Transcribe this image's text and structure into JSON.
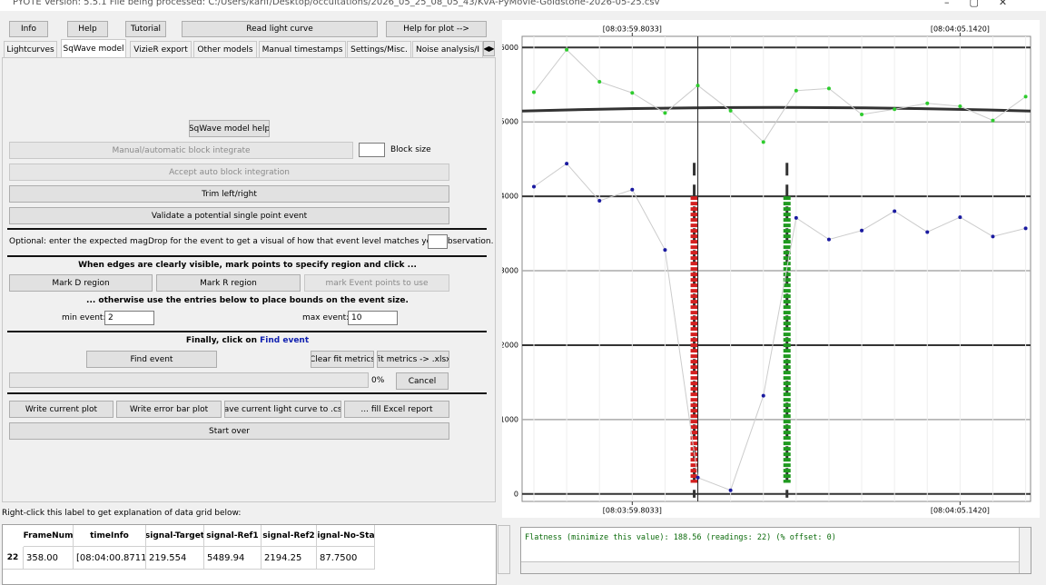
{
  "window": {
    "title": "PYOTE Version: 5.5.1  File being processed: C:/Users/karlf/Desktop/occultations/2026_05_25_08_05_43/KvA-PyMovie-Goldstone-2026-05-25.csv"
  },
  "top_buttons": [
    "Info",
    "Help",
    "Tutorial",
    "Read light curve",
    "Help for plot -->"
  ],
  "tabs": [
    "Lightcurves",
    "SqWave model",
    "VizieR export",
    "Other models",
    "Manual timestamps",
    "Settings/Misc.",
    "Noise analysis/I"
  ],
  "panel": {
    "help_button": "SqWave model help",
    "block_integrate": "Manual/automatic block integrate",
    "block_size": "Block size",
    "accept_block": "Accept auto block integration",
    "trim": "Trim left/right",
    "validate": "Validate a potential single point event",
    "magdrop_prompt": "Optional: enter the expected magDrop for the event to get a visual of how that event level matches your observation.",
    "edges_heading": "When edges are clearly visible, mark points to specify region and click ...",
    "mark_d": "Mark D region",
    "mark_r": "Mark R region",
    "mark_event": "mark Event points to use",
    "otherwise_heading": "... otherwise use the entries below to place bounds on the event size.",
    "min_event_label": "min event:",
    "min_event_value": "2",
    "max_event_label": "max event:",
    "max_event_value": "10",
    "finally_text": "Finally, click on ",
    "finally_link": "Find event",
    "find_event": "Find event",
    "clear_fit": "Clear fit metrics",
    "fit_xlsx": "fit metrics -> .xlsx",
    "progress": "0%",
    "cancel": "Cancel",
    "write_plot": "Write current plot",
    "write_error": "Write error bar plot",
    "save_csv": "Save current light curve to .csv",
    "fill_excel": "... fill Excel report",
    "start_over": "Start over"
  },
  "grid_label": "Right-click this label to get explanation of data grid below:",
  "table": {
    "columns": [
      "FrameNum",
      "timeInfo",
      "signal-Target",
      "signal-Ref1",
      "signal-Ref2",
      "signal-No-Star"
    ],
    "rows": [
      {
        "header": "22",
        "cells": [
          "358.00",
          "[08:04:00.8711]",
          "219.554",
          "5489.94",
          "2194.25",
          "87.7500"
        ]
      }
    ]
  },
  "output": "Flatness (minimize this value): 188.56 (readings: 22) (% offset: 0)",
  "chart_data": {
    "type": "scatter",
    "x": [
      0,
      1,
      2,
      3,
      4,
      5,
      6,
      7,
      8,
      9,
      10,
      11,
      12,
      13,
      14,
      15
    ],
    "xlim": [
      -0.36,
      15.15
    ],
    "xticks": [
      {
        "value": 3,
        "label": "[08:03:59.8033]"
      },
      {
        "value": 13,
        "label": "[08:04:05.1420]"
      }
    ],
    "ylim": [
      -100,
      6150
    ],
    "yticks": [
      0,
      1000,
      2000,
      3000,
      4000,
      5000,
      6000
    ],
    "series": [
      {
        "color": "#2ecc2e",
        "values": [
          5400,
          5970,
          5540,
          5390,
          5120,
          5490,
          5150,
          4730,
          5420,
          5450,
          5100,
          5170,
          5250,
          5210,
          5020,
          5340
        ]
      },
      {
        "color": "#1a1aa0",
        "values": [
          4130,
          4440,
          3940,
          4090,
          3280,
          220,
          50,
          1320,
          3710,
          3420,
          3540,
          3800,
          3520,
          3720,
          3460,
          3570
        ]
      }
    ],
    "baseline": 5170,
    "edges": [
      {
        "x": 4.89,
        "color": "#d42020"
      },
      {
        "x": 7.72,
        "color": "#1f9a1f"
      }
    ]
  }
}
